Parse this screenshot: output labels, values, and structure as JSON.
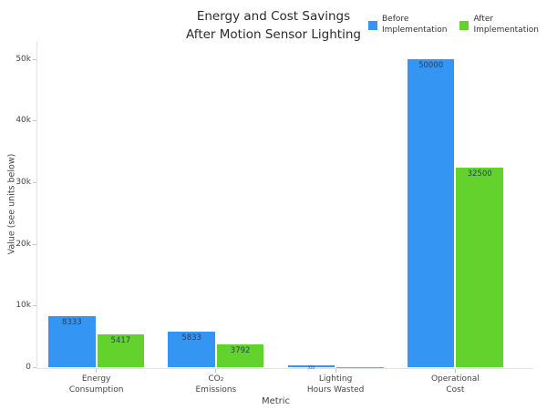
{
  "title": {
    "line1": "Energy and Cost Savings",
    "line2": "After Motion Sensor Lighting"
  },
  "legend": {
    "items": [
      {
        "label_line1": "Before",
        "label_line2": "Implementation",
        "color": "#3495F2"
      },
      {
        "label_line1": "After",
        "label_line2": "Implementation",
        "color": "#64D22D"
      }
    ]
  },
  "chart_data": {
    "type": "bar",
    "title": "Energy and Cost Savings After Motion Sensor Lighting",
    "xlabel": "Metric",
    "ylabel": "Value (see units below)",
    "categories": [
      "Energy Consumption",
      "CO₂ Emissions",
      "Lighting Hours Wasted",
      "Operational Cost"
    ],
    "category_label_lines": [
      [
        "Energy",
        "Consumption"
      ],
      [
        "CO₂",
        "Emissions"
      ],
      [
        "Lighting",
        "Hours Wasted"
      ],
      [
        "Operational",
        "Cost"
      ]
    ],
    "series": [
      {
        "name": "Before Implementation",
        "color": "#3495F2",
        "values": [
          8333,
          5833,
          333,
          50000
        ]
      },
      {
        "name": "After Implementation",
        "color": "#64D22D",
        "values": [
          5417,
          3792,
          83,
          32500
        ]
      }
    ],
    "bar_value_labels": [
      [
        "8333",
        "5833",
        "333",
        "50000"
      ],
      [
        "5417",
        "3792",
        "83",
        "32500"
      ]
    ],
    "ylim": [
      0,
      53000
    ],
    "yticks": [
      {
        "value": 0,
        "label": "0"
      },
      {
        "value": 10000,
        "label": "10k"
      },
      {
        "value": 20000,
        "label": "20k"
      },
      {
        "value": 30000,
        "label": "30k"
      },
      {
        "value": 40000,
        "label": "40k"
      },
      {
        "value": 50000,
        "label": "50k"
      }
    ],
    "grid": false,
    "legend_position": "top-right"
  }
}
